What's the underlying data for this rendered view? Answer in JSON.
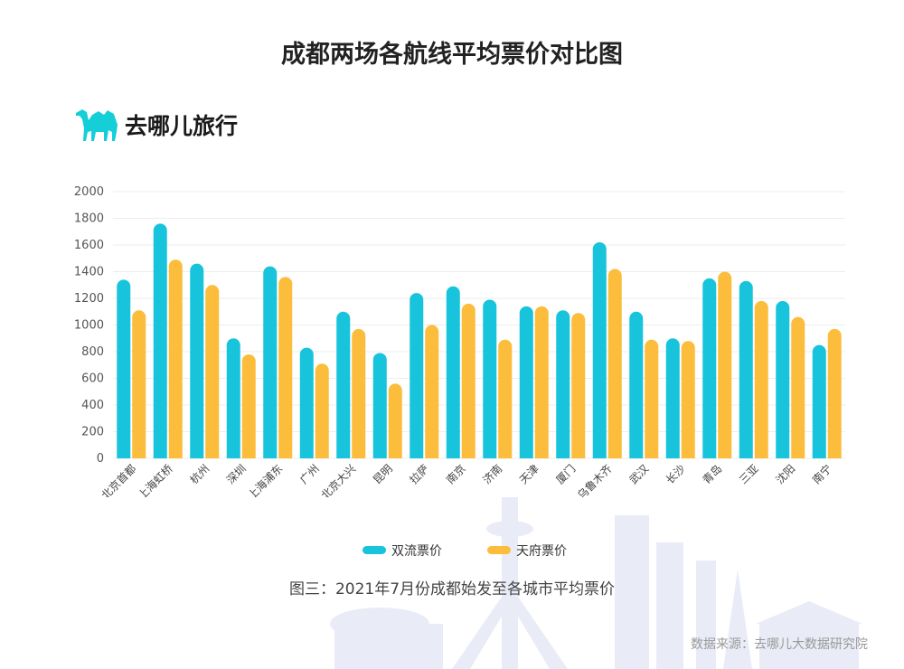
{
  "title": "成都两场各航线平均票价对比图",
  "logo": {
    "text": "去哪儿旅行",
    "icon": "camel-icon",
    "color": "#14cfd8"
  },
  "caption": "图三：2021年7月份成都始发至各城市平均票价",
  "source": "数据来源：去哪儿大数据研究院",
  "colors": {
    "series1": "#17c4dc",
    "series2": "#fbbd3b",
    "grid": "#ededed",
    "skyline": "#e9ecf6"
  },
  "chart_data": {
    "type": "bar",
    "categories": [
      "北京首都",
      "上海虹桥",
      "杭州",
      "深圳",
      "上海浦东",
      "广州",
      "北京大兴",
      "昆明",
      "拉萨",
      "南京",
      "济南",
      "天津",
      "厦门",
      "乌鲁木齐",
      "武汉",
      "长沙",
      "青岛",
      "三亚",
      "沈阳",
      "南宁"
    ],
    "series": [
      {
        "name": "双流票价",
        "values": [
          1340,
          1760,
          1460,
          900,
          1440,
          830,
          1100,
          790,
          1240,
          1290,
          1190,
          1140,
          1110,
          1620,
          1100,
          900,
          1350,
          1330,
          1180,
          850
        ]
      },
      {
        "name": "天府票价",
        "values": [
          1110,
          1490,
          1300,
          780,
          1360,
          710,
          970,
          560,
          1000,
          1160,
          890,
          1140,
          1090,
          1420,
          890,
          880,
          1400,
          1180,
          1060,
          970
        ]
      }
    ],
    "y_ticks": [
      0,
      200,
      400,
      600,
      800,
      1000,
      1200,
      1400,
      1600,
      1800,
      2000
    ],
    "ylim": [
      0,
      2000
    ],
    "grid": true,
    "legend_position": "bottom-center"
  }
}
